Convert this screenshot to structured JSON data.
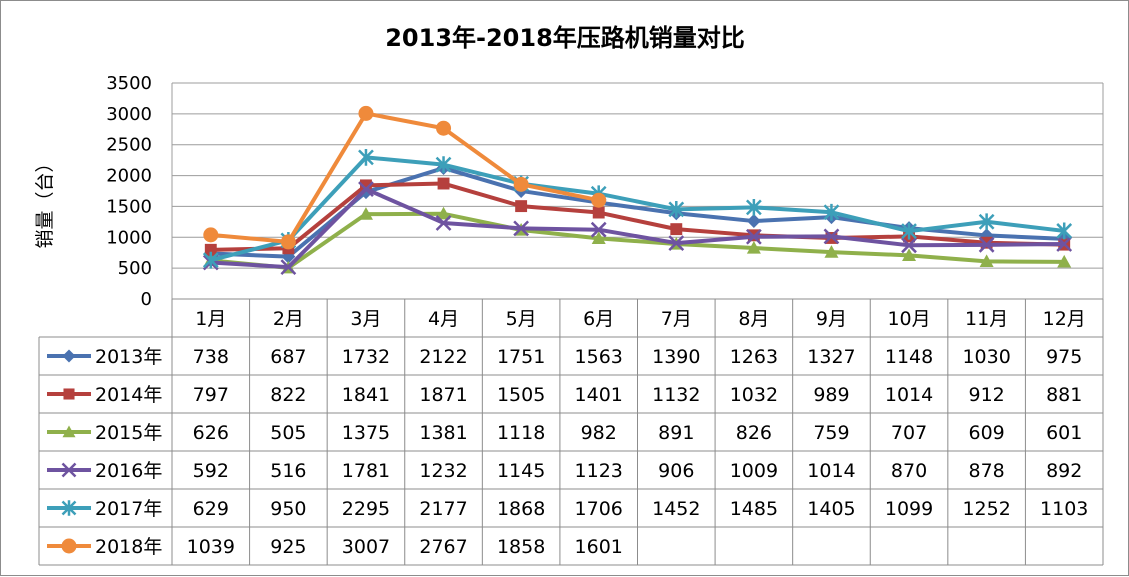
{
  "chart_data": {
    "type": "line",
    "title": "2013年-2018年压路机销量对比",
    "xlabel": "",
    "ylabel": "销量（台）",
    "ylim": [
      0,
      3500
    ],
    "yticks": [
      0,
      500,
      1000,
      1500,
      2000,
      2500,
      3000,
      3500
    ],
    "categories": [
      "1月",
      "2月",
      "3月",
      "4月",
      "5月",
      "6月",
      "7月",
      "8月",
      "9月",
      "10月",
      "11月",
      "12月"
    ],
    "grid": true,
    "legend": "data-table",
    "series": [
      {
        "name": "2013年",
        "color": "#4a72b0",
        "marker": "diamond",
        "values": [
          738,
          687,
          1732,
          2122,
          1751,
          1563,
          1390,
          1263,
          1327,
          1148,
          1030,
          975
        ]
      },
      {
        "name": "2014年",
        "color": "#b5403d",
        "marker": "square",
        "values": [
          797,
          822,
          1841,
          1871,
          1505,
          1401,
          1132,
          1032,
          989,
          1014,
          912,
          881
        ]
      },
      {
        "name": "2015年",
        "color": "#8fb04b",
        "marker": "triangle",
        "values": [
          626,
          505,
          1375,
          1381,
          1118,
          982,
          891,
          826,
          759,
          707,
          609,
          601
        ]
      },
      {
        "name": "2016年",
        "color": "#6e53a0",
        "marker": "x",
        "values": [
          592,
          516,
          1781,
          1232,
          1145,
          1123,
          906,
          1009,
          1014,
          870,
          878,
          892
        ]
      },
      {
        "name": "2017年",
        "color": "#3d9fb9",
        "marker": "star",
        "values": [
          629,
          950,
          2295,
          2177,
          1868,
          1706,
          1452,
          1485,
          1405,
          1099,
          1252,
          1103
        ]
      },
      {
        "name": "2018年",
        "color": "#ef8a3b",
        "marker": "circle",
        "values": [
          1039,
          925,
          3007,
          2767,
          1858,
          1601,
          null,
          null,
          null,
          null,
          null,
          null
        ]
      }
    ]
  }
}
